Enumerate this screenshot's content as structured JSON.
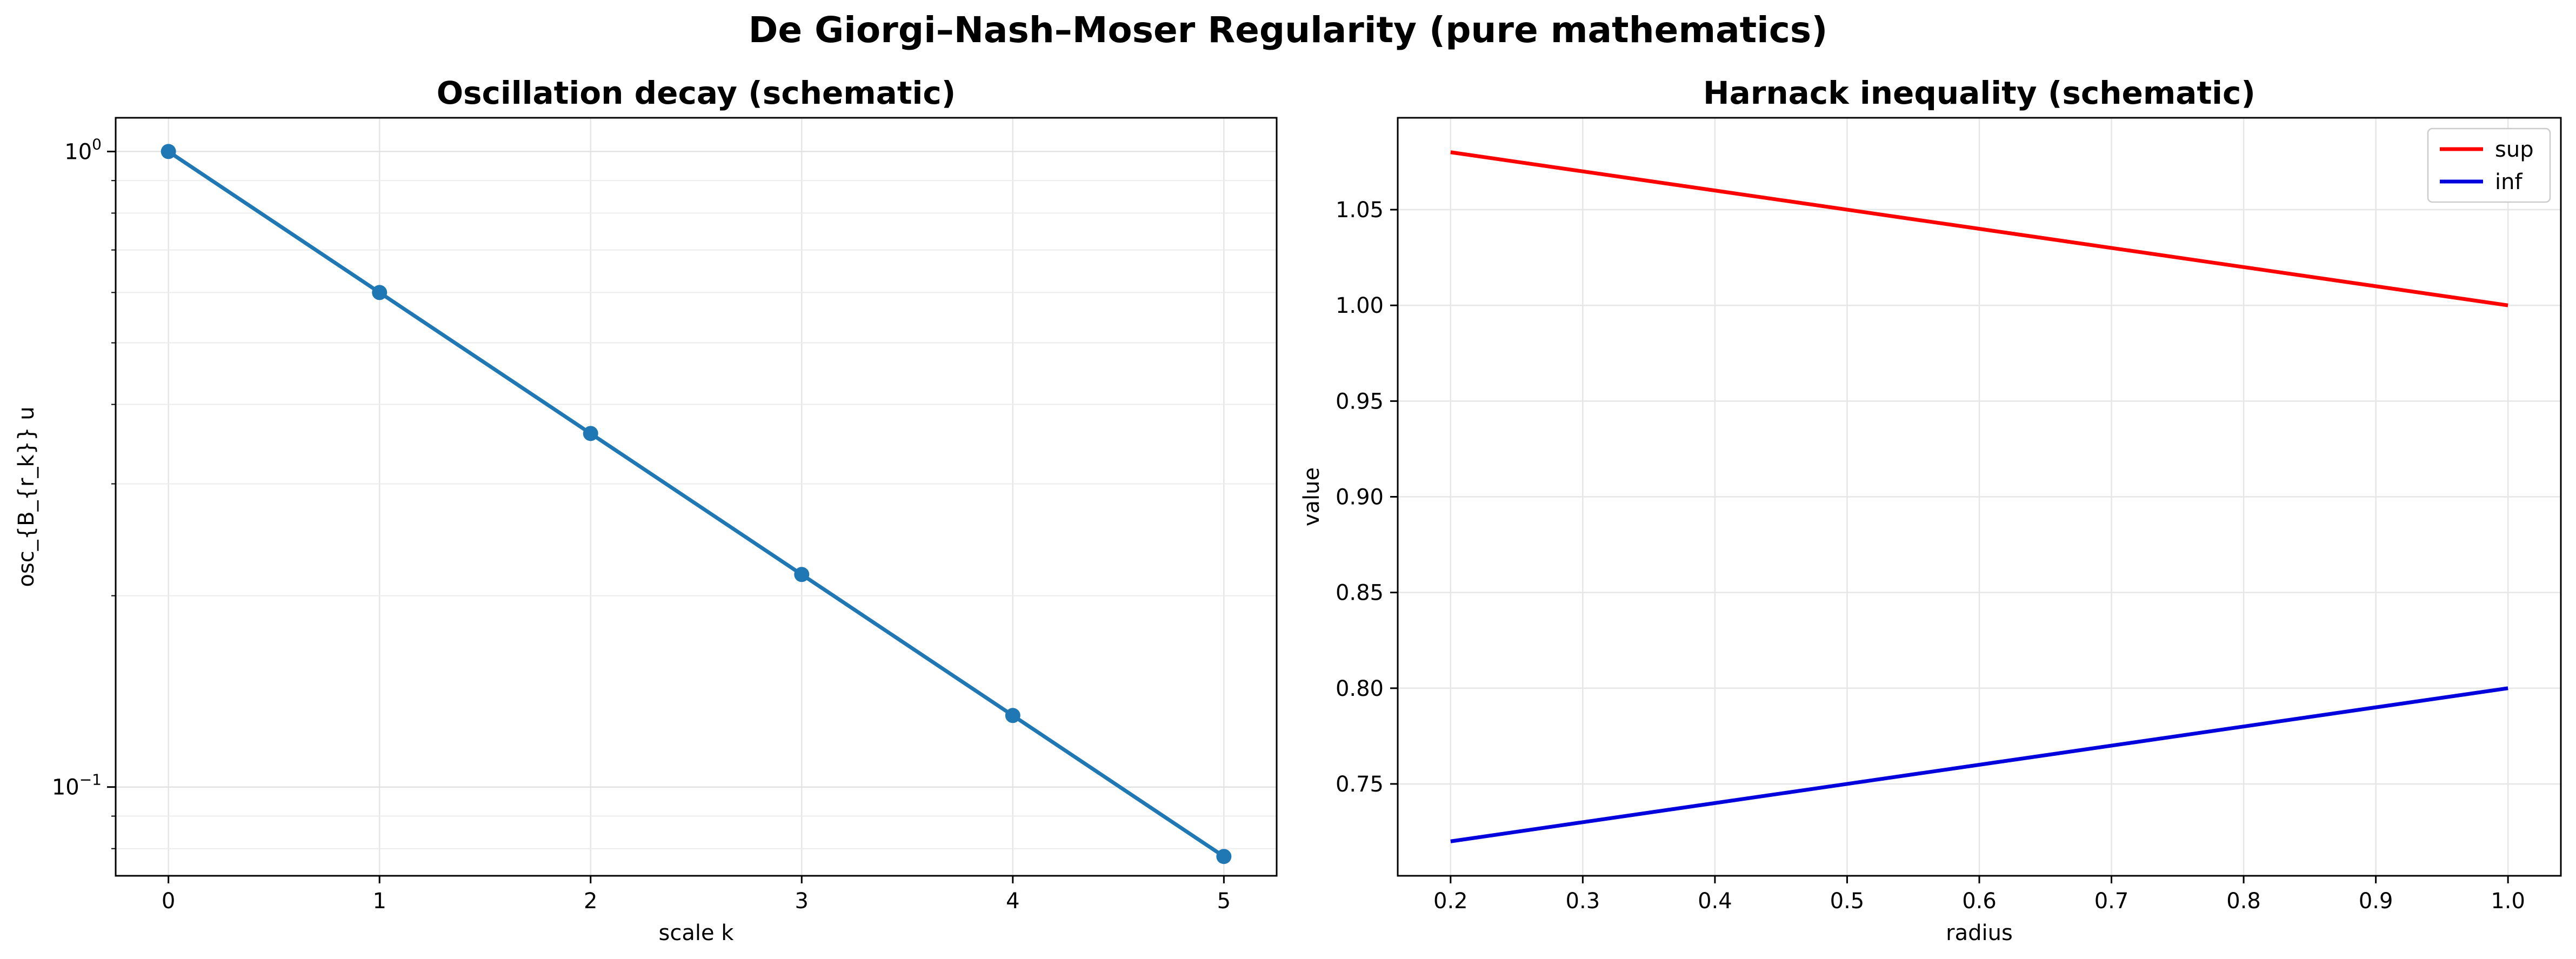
{
  "figure": {
    "suptitle": "De Giorgi–Nash–Moser Regularity (pure mathematics)"
  },
  "chart_data": [
    {
      "type": "line",
      "title": "Oscillation decay (schematic)",
      "xlabel": "scale k",
      "ylabel": "osc_{B_{r_k}} u",
      "yscale": "log",
      "xlim": [
        -0.25,
        5.25
      ],
      "ylim": [
        0.0725,
        1.13
      ],
      "x_ticks": [
        0,
        1,
        2,
        3,
        4,
        5
      ],
      "y_ticks": [
        {
          "value": 1,
          "base": "10",
          "exp": "0"
        },
        {
          "value": 0.1,
          "base": "10",
          "exp": "−1"
        }
      ],
      "grid": true,
      "series": [
        {
          "color": "#1f77b4",
          "marker": "circle",
          "x": [
            0,
            1,
            2,
            3,
            4,
            5
          ],
          "y": [
            1.0,
            0.6,
            0.36,
            0.216,
            0.1296,
            0.07776
          ]
        }
      ]
    },
    {
      "type": "line",
      "title": "Harnack inequality (schematic)",
      "xlabel": "radius",
      "ylabel": "value",
      "xlim": [
        0.16,
        1.04
      ],
      "ylim": [
        0.702,
        1.098
      ],
      "x_ticks": [
        0.2,
        0.3,
        0.4,
        0.5,
        0.6,
        0.7,
        0.8,
        0.9,
        1.0
      ],
      "y_ticks": [
        0.75,
        0.8,
        0.85,
        0.9,
        0.95,
        1.0,
        1.05
      ],
      "grid": true,
      "legend": "top-right",
      "series": [
        {
          "name": "sup",
          "color": "#ff0000",
          "x": [
            0.2,
            1.0
          ],
          "y": [
            1.08,
            1.0
          ]
        },
        {
          "name": "inf",
          "color": "#0000dd",
          "x": [
            0.2,
            1.0
          ],
          "y": [
            0.72,
            0.8
          ]
        }
      ]
    }
  ]
}
